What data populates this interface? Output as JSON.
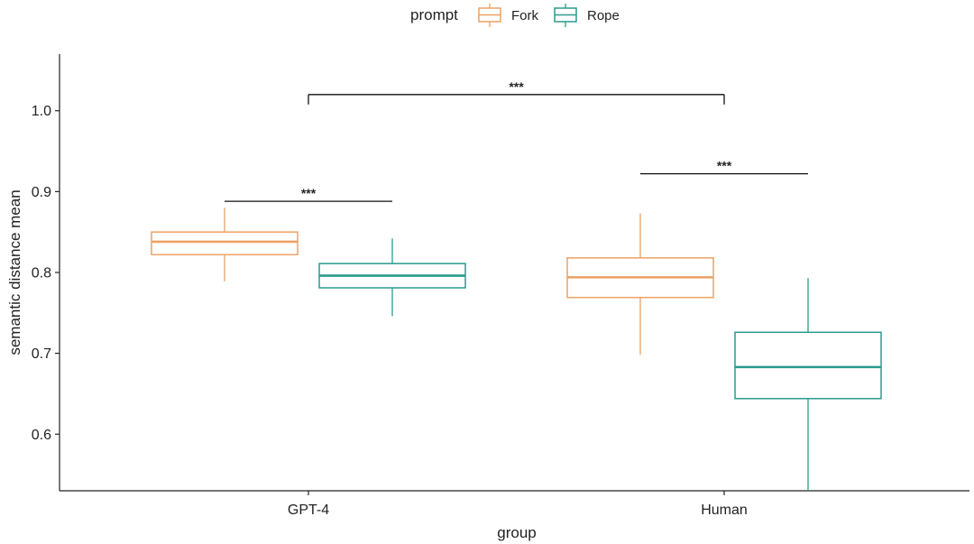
{
  "chart_data": {
    "type": "boxplot",
    "legend": {
      "title": "prompt",
      "position": "top",
      "entries": [
        {
          "name": "Fork",
          "color": "#ECA263"
        },
        {
          "name": "Rope",
          "color": "#2A9A8C"
        }
      ]
    },
    "xlabel": "group",
    "ylabel": "semantic distance mean",
    "categories": [
      "GPT-4",
      "Human"
    ],
    "yticks": [
      "0.6",
      "0.7",
      "0.8",
      "0.9",
      "1.0"
    ],
    "ylim": [
      0.53,
      1.07
    ],
    "grid": false,
    "series": [
      {
        "name": "Fork",
        "color": "#ECA263",
        "boxes": [
          {
            "category": "GPT-4",
            "min": 0.789,
            "q1": 0.822,
            "median": 0.838,
            "q3": 0.85,
            "max": 0.88
          },
          {
            "category": "Human",
            "min": 0.698,
            "q1": 0.769,
            "median": 0.794,
            "q3": 0.818,
            "max": 0.873
          }
        ]
      },
      {
        "name": "Rope",
        "color": "#2A9A8C",
        "boxes": [
          {
            "category": "GPT-4",
            "min": 0.746,
            "q1": 0.781,
            "median": 0.796,
            "q3": 0.811,
            "max": 0.842
          },
          {
            "category": "Human",
            "min": 0.53,
            "q1": 0.644,
            "median": 0.683,
            "q3": 0.726,
            "max": 0.793
          }
        ]
      }
    ],
    "significance": [
      {
        "label": "***",
        "from": "GPT-4 Fork",
        "to": "GPT-4 Rope",
        "y": 0.888
      },
      {
        "label": "***",
        "from": "Human Fork",
        "to": "Human Rope",
        "y": 0.922
      },
      {
        "label": "***",
        "from": "GPT-4",
        "to": "Human",
        "y": 1.02
      }
    ]
  }
}
